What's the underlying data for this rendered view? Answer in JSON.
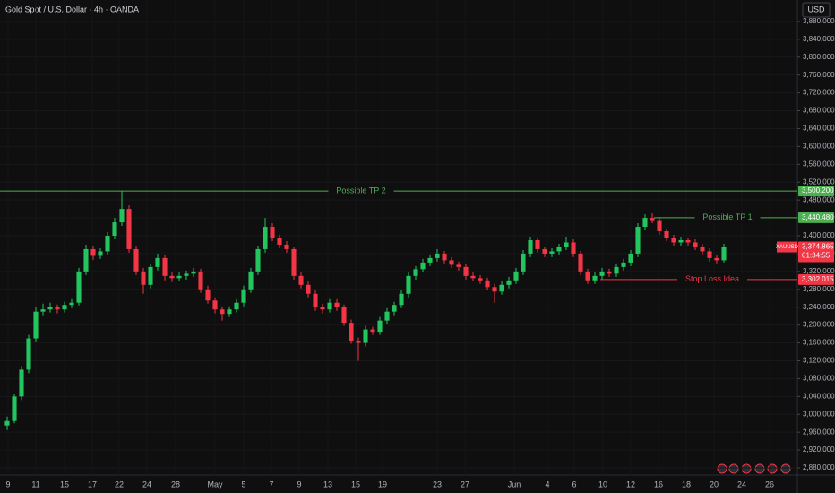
{
  "chart_data": {
    "type": "candlestick",
    "title": "Gold Spot / U.S. Dollar · 4h · OANDA",
    "currency": "USD",
    "symbol": "XAUUSD",
    "countdown": "01:34:55",
    "up_color": "#22c55e",
    "down_color": "#f23645",
    "ohlc": [
      [
        2975,
        2995,
        2965,
        2985
      ],
      [
        2985,
        3045,
        2980,
        3040
      ],
      [
        3040,
        3108,
        3032,
        3100
      ],
      [
        3100,
        3178,
        3092,
        3170
      ],
      [
        3170,
        3240,
        3162,
        3230
      ],
      [
        3230,
        3248,
        3222,
        3235
      ],
      [
        3235,
        3250,
        3228,
        3240
      ],
      [
        3240,
        3246,
        3226,
        3235
      ],
      [
        3235,
        3252,
        3228,
        3245
      ],
      [
        3245,
        3258,
        3238,
        3250
      ],
      [
        3250,
        3328,
        3244,
        3320
      ],
      [
        3320,
        3380,
        3312,
        3370
      ],
      [
        3370,
        3378,
        3346,
        3355
      ],
      [
        3355,
        3372,
        3348,
        3365
      ],
      [
        3365,
        3408,
        3358,
        3400
      ],
      [
        3400,
        3440,
        3392,
        3430
      ],
      [
        3430,
        3500,
        3422,
        3460
      ],
      [
        3460,
        3468,
        3362,
        3370
      ],
      [
        3370,
        3378,
        3312,
        3320
      ],
      [
        3320,
        3328,
        3270,
        3290
      ],
      [
        3290,
        3338,
        3282,
        3330
      ],
      [
        3330,
        3360,
        3322,
        3350
      ],
      [
        3350,
        3356,
        3300,
        3310
      ],
      [
        3310,
        3318,
        3296,
        3305
      ],
      [
        3305,
        3318,
        3298,
        3310
      ],
      [
        3310,
        3322,
        3302,
        3315
      ],
      [
        3315,
        3328,
        3308,
        3320
      ],
      [
        3320,
        3326,
        3272,
        3280
      ],
      [
        3280,
        3288,
        3248,
        3255
      ],
      [
        3255,
        3262,
        3226,
        3235
      ],
      [
        3235,
        3242,
        3210,
        3225
      ],
      [
        3225,
        3242,
        3218,
        3235
      ],
      [
        3235,
        3258,
        3228,
        3250
      ],
      [
        3250,
        3288,
        3242,
        3280
      ],
      [
        3280,
        3328,
        3272,
        3320
      ],
      [
        3320,
        3378,
        3312,
        3370
      ],
      [
        3370,
        3440,
        3362,
        3420
      ],
      [
        3420,
        3428,
        3388,
        3395
      ],
      [
        3395,
        3402,
        3372,
        3380
      ],
      [
        3380,
        3388,
        3362,
        3370
      ],
      [
        3370,
        3376,
        3302,
        3310
      ],
      [
        3310,
        3318,
        3282,
        3290
      ],
      [
        3290,
        3298,
        3262,
        3270
      ],
      [
        3270,
        3278,
        3232,
        3240
      ],
      [
        3240,
        3248,
        3226,
        3235
      ],
      [
        3235,
        3258,
        3228,
        3250
      ],
      [
        3250,
        3258,
        3232,
        3240
      ],
      [
        3240,
        3246,
        3198,
        3205
      ],
      [
        3205,
        3212,
        3158,
        3165
      ],
      [
        3165,
        3172,
        3120,
        3160
      ],
      [
        3160,
        3198,
        3152,
        3190
      ],
      [
        3190,
        3196,
        3178,
        3185
      ],
      [
        3185,
        3218,
        3178,
        3210
      ],
      [
        3210,
        3238,
        3202,
        3230
      ],
      [
        3230,
        3252,
        3222,
        3245
      ],
      [
        3245,
        3278,
        3238,
        3270
      ],
      [
        3270,
        3318,
        3262,
        3310
      ],
      [
        3310,
        3332,
        3302,
        3325
      ],
      [
        3325,
        3348,
        3318,
        3340
      ],
      [
        3340,
        3358,
        3332,
        3350
      ],
      [
        3350,
        3370,
        3342,
        3360
      ],
      [
        3360,
        3366,
        3338,
        3345
      ],
      [
        3345,
        3352,
        3328,
        3335
      ],
      [
        3335,
        3342,
        3322,
        3330
      ],
      [
        3330,
        3336,
        3302,
        3310
      ],
      [
        3310,
        3318,
        3298,
        3305
      ],
      [
        3305,
        3312,
        3292,
        3300
      ],
      [
        3300,
        3306,
        3278,
        3285
      ],
      [
        3285,
        3292,
        3250,
        3275
      ],
      [
        3275,
        3298,
        3268,
        3290
      ],
      [
        3290,
        3308,
        3282,
        3300
      ],
      [
        3300,
        3328,
        3292,
        3320
      ],
      [
        3320,
        3368,
        3312,
        3360
      ],
      [
        3360,
        3398,
        3352,
        3390
      ],
      [
        3390,
        3396,
        3362,
        3370
      ],
      [
        3370,
        3376,
        3352,
        3360
      ],
      [
        3360,
        3372,
        3352,
        3365
      ],
      [
        3365,
        3382,
        3358,
        3375
      ],
      [
        3375,
        3398,
        3368,
        3385
      ],
      [
        3385,
        3392,
        3352,
        3360
      ],
      [
        3360,
        3366,
        3312,
        3320
      ],
      [
        3320,
        3326,
        3292,
        3300
      ],
      [
        3300,
        3318,
        3292,
        3310
      ],
      [
        3310,
        3328,
        3302,
        3320
      ],
      [
        3320,
        3326,
        3308,
        3315
      ],
      [
        3315,
        3338,
        3308,
        3330
      ],
      [
        3330,
        3348,
        3322,
        3340
      ],
      [
        3340,
        3368,
        3332,
        3360
      ],
      [
        3360,
        3428,
        3352,
        3420
      ],
      [
        3420,
        3448,
        3412,
        3440
      ],
      [
        3440,
        3450,
        3428,
        3435
      ],
      [
        3435,
        3442,
        3402,
        3410
      ],
      [
        3410,
        3416,
        3388,
        3395
      ],
      [
        3395,
        3402,
        3378,
        3385
      ],
      [
        3385,
        3398,
        3378,
        3390
      ],
      [
        3390,
        3396,
        3378,
        3385
      ],
      [
        3385,
        3392,
        3368,
        3375
      ],
      [
        3375,
        3382,
        3358,
        3365
      ],
      [
        3365,
        3372,
        3342,
        3350
      ],
      [
        3350,
        3356,
        3338,
        3345
      ],
      [
        3345,
        3382,
        3340,
        3375
      ]
    ],
    "xlim": [
      0,
      111.25
    ],
    "xticks": [
      {
        "value": 1.125,
        "label": "9"
      },
      {
        "value": 5,
        "label": "11"
      },
      {
        "value": 9,
        "label": "15"
      },
      {
        "value": 12.875,
        "label": "17"
      },
      {
        "value": 16.625,
        "label": "22"
      },
      {
        "value": 20.5,
        "label": "24"
      },
      {
        "value": 24.5,
        "label": "28"
      },
      {
        "value": 30,
        "label": "May"
      },
      {
        "value": 34,
        "label": "5"
      },
      {
        "value": 37.875,
        "label": "7"
      },
      {
        "value": 41.75,
        "label": "9"
      },
      {
        "value": 45.75,
        "label": "13"
      },
      {
        "value": 49.625,
        "label": "15"
      },
      {
        "value": 53.375,
        "label": "19"
      },
      {
        "value": 61,
        "label": "23"
      },
      {
        "value": 64.875,
        "label": "27"
      },
      {
        "value": 71.75,
        "label": "Jun"
      },
      {
        "value": 76.375,
        "label": "4"
      },
      {
        "value": 80.125,
        "label": "6"
      },
      {
        "value": 84.125,
        "label": "10"
      },
      {
        "value": 88,
        "label": "12"
      },
      {
        "value": 91.875,
        "label": "16"
      },
      {
        "value": 95.75,
        "label": "18"
      },
      {
        "value": 99.625,
        "label": "20"
      },
      {
        "value": 103.5,
        "label": "24"
      },
      {
        "value": 107.375,
        "label": "26"
      }
    ],
    "ylim": [
      2864,
      3928
    ],
    "yticks": [
      {
        "value": 2880,
        "label": "2,880.000"
      },
      {
        "value": 2920,
        "label": "2,920.000"
      },
      {
        "value": 2960,
        "label": "2,960.000"
      },
      {
        "value": 3000,
        "label": "3,000.000"
      },
      {
        "value": 3040,
        "label": "3,040.000"
      },
      {
        "value": 3080,
        "label": "3,080.000"
      },
      {
        "value": 3120,
        "label": "3,120.000"
      },
      {
        "value": 3160,
        "label": "3,160.000"
      },
      {
        "value": 3200,
        "label": "3,200.000"
      },
      {
        "value": 3240,
        "label": "3,240.000"
      },
      {
        "value": 3280,
        "label": "3,280.000"
      },
      {
        "value": 3320,
        "label": "3,320.000"
      },
      {
        "value": 3360,
        "label": "3,360.000"
      },
      {
        "value": 3400,
        "label": "3,400.000"
      },
      {
        "value": 3440,
        "label": "3,440.000"
      },
      {
        "value": 3480,
        "label": "3,480.000"
      },
      {
        "value": 3520,
        "label": "3,520.000"
      },
      {
        "value": 3560,
        "label": "3,560.000"
      },
      {
        "value": 3600,
        "label": "3,600.000"
      },
      {
        "value": 3640,
        "label": "3,640.000"
      },
      {
        "value": 3680,
        "label": "3,680.000"
      },
      {
        "value": 3720,
        "label": "3,720.000"
      },
      {
        "value": 3760,
        "label": "3,760.000"
      },
      {
        "value": 3800,
        "label": "3,800.000"
      },
      {
        "value": 3840,
        "label": "3,840.000"
      },
      {
        "value": 3880,
        "label": "3,880.000"
      }
    ],
    "levels": [
      {
        "name": "Possible TP 2",
        "value": 3500.2,
        "label": "3,500.200",
        "color": "#4caf50"
      },
      {
        "name": "Possible TP 1",
        "value": 3440.48,
        "label": "3,440.480",
        "color": "#4caf50"
      },
      {
        "name": "Stop Loss Idea",
        "value": 3302.015,
        "label": "3,302.015",
        "color": "#f23645"
      }
    ],
    "last_price": {
      "value": 3374.865,
      "label": "3,374.865",
      "color": "#f23645"
    }
  }
}
